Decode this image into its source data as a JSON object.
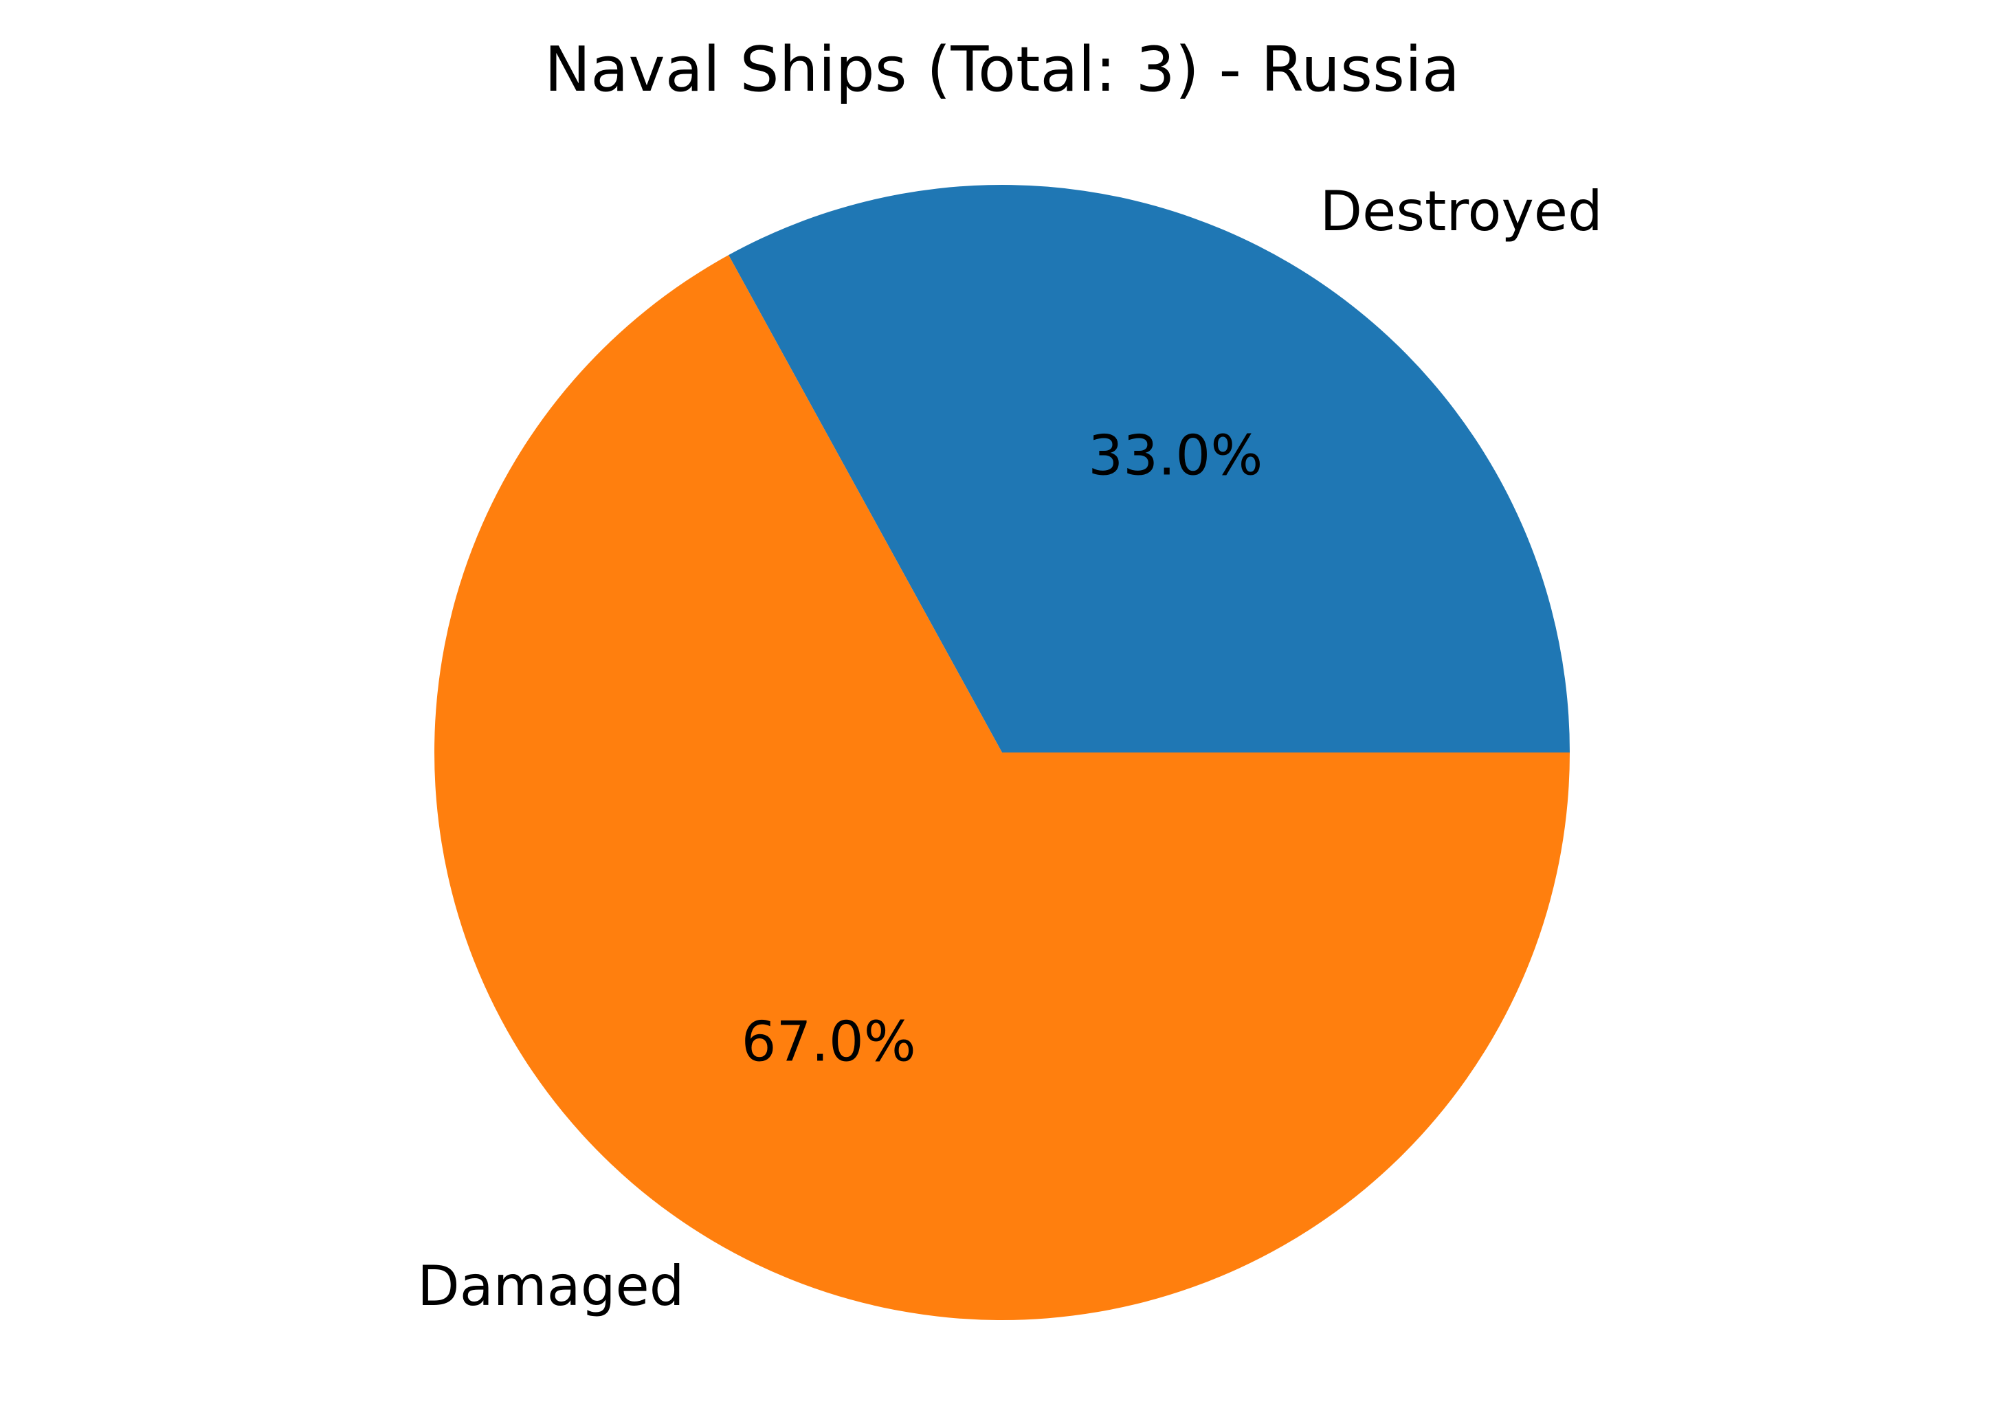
{
  "chart_data": {
    "type": "pie",
    "title": "Naval Ships (Total: 3) - Russia",
    "slices": [
      {
        "label": "Destroyed",
        "value": 33.0,
        "pct_label": "33.0%",
        "color": "#1f77b4"
      },
      {
        "label": "Damaged",
        "value": 67.0,
        "pct_label": "67.0%",
        "color": "#ff7f0e"
      }
    ],
    "start_angle_deg": 0,
    "direction": "counterclockwise",
    "legend": "none"
  }
}
